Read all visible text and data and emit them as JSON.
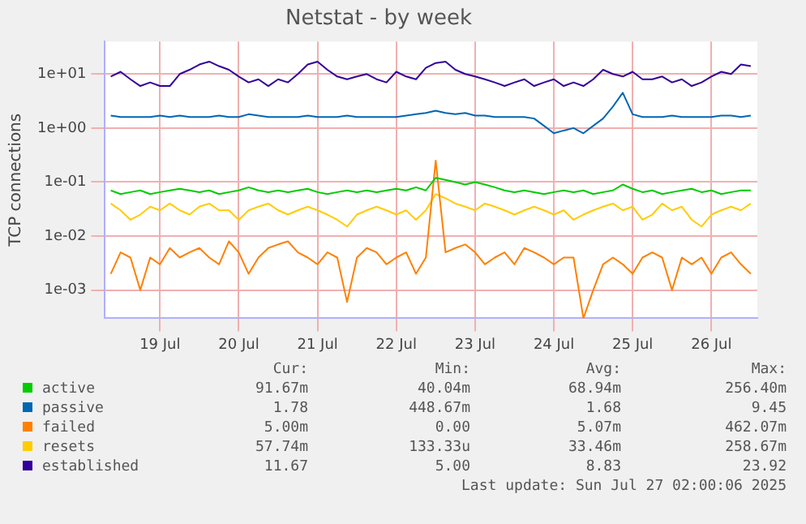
{
  "chart_data": {
    "type": "line",
    "title": "Netstat - by week",
    "ylabel": "TCP connections",
    "x": [
      "2025-07-18T21:00",
      "2025-07-19T00:00",
      "2025-07-19T03:00",
      "2025-07-19T06:00",
      "2025-07-19T09:00",
      "2025-07-19T12:00",
      "2025-07-19T15:00",
      "2025-07-19T18:00",
      "2025-07-19T21:00",
      "2025-07-20T00:00",
      "2025-07-20T03:00",
      "2025-07-20T06:00",
      "2025-07-20T09:00",
      "2025-07-20T12:00",
      "2025-07-20T15:00",
      "2025-07-20T18:00",
      "2025-07-20T21:00",
      "2025-07-21T00:00",
      "2025-07-21T03:00",
      "2025-07-21T06:00",
      "2025-07-21T09:00",
      "2025-07-21T12:00",
      "2025-07-21T15:00",
      "2025-07-21T18:00",
      "2025-07-21T21:00",
      "2025-07-22T00:00",
      "2025-07-22T03:00",
      "2025-07-22T06:00",
      "2025-07-22T09:00",
      "2025-07-22T12:00",
      "2025-07-22T15:00",
      "2025-07-22T18:00",
      "2025-07-22T21:00",
      "2025-07-23T00:00",
      "2025-07-23T03:00",
      "2025-07-23T06:00",
      "2025-07-23T09:00",
      "2025-07-23T12:00",
      "2025-07-23T15:00",
      "2025-07-23T18:00",
      "2025-07-23T21:00",
      "2025-07-24T00:00",
      "2025-07-24T03:00",
      "2025-07-24T06:00",
      "2025-07-24T09:00",
      "2025-07-24T12:00",
      "2025-07-24T15:00",
      "2025-07-24T18:00",
      "2025-07-24T21:00",
      "2025-07-25T00:00",
      "2025-07-25T03:00",
      "2025-07-25T06:00",
      "2025-07-25T09:00",
      "2025-07-25T12:00",
      "2025-07-25T15:00",
      "2025-07-25T18:00",
      "2025-07-25T21:00",
      "2025-07-26T00:00",
      "2025-07-26T03:00",
      "2025-07-26T06:00",
      "2025-07-26T09:00",
      "2025-07-26T12:00",
      "2025-07-26T15:00",
      "2025-07-26T18:00",
      "2025-07-26T21:00",
      "2025-07-27T00:00"
    ],
    "series": [
      {
        "name": "active",
        "color": "#00cc00",
        "values": [
          0.07,
          0.06,
          0.065,
          0.07,
          0.06,
          0.065,
          0.07,
          0.075,
          0.07,
          0.065,
          0.07,
          0.06,
          0.065,
          0.07,
          0.08,
          0.07,
          0.065,
          0.07,
          0.065,
          0.07,
          0.075,
          0.065,
          0.06,
          0.065,
          0.07,
          0.065,
          0.07,
          0.065,
          0.07,
          0.075,
          0.07,
          0.08,
          0.07,
          0.12,
          0.11,
          0.1,
          0.09,
          0.1,
          0.09,
          0.08,
          0.07,
          0.065,
          0.07,
          0.065,
          0.06,
          0.065,
          0.07,
          0.065,
          0.07,
          0.06,
          0.065,
          0.07,
          0.09,
          0.075,
          0.065,
          0.07,
          0.06,
          0.065,
          0.07,
          0.075,
          0.065,
          0.07,
          0.06,
          0.065,
          0.07,
          0.07
        ]
      },
      {
        "name": "passive",
        "color": "#0066b3",
        "values": [
          1.7,
          1.6,
          1.6,
          1.6,
          1.6,
          1.7,
          1.6,
          1.7,
          1.6,
          1.6,
          1.6,
          1.7,
          1.6,
          1.6,
          1.8,
          1.7,
          1.6,
          1.6,
          1.6,
          1.6,
          1.7,
          1.6,
          1.6,
          1.6,
          1.7,
          1.6,
          1.6,
          1.6,
          1.6,
          1.6,
          1.7,
          1.8,
          1.9,
          2.1,
          1.9,
          1.8,
          1.9,
          1.7,
          1.7,
          1.6,
          1.6,
          1.6,
          1.6,
          1.5,
          1.1,
          0.8,
          0.9,
          1.0,
          0.8,
          1.1,
          1.5,
          2.5,
          4.5,
          1.8,
          1.6,
          1.6,
          1.6,
          1.7,
          1.6,
          1.6,
          1.6,
          1.6,
          1.7,
          1.7,
          1.6,
          1.7
        ]
      },
      {
        "name": "failed",
        "color": "#ff8000",
        "values": [
          0.002,
          0.005,
          0.004,
          0.001,
          0.004,
          0.003,
          0.006,
          0.004,
          0.005,
          0.006,
          0.004,
          0.003,
          0.008,
          0.005,
          0.002,
          0.004,
          0.006,
          0.007,
          0.008,
          0.005,
          0.004,
          0.003,
          0.005,
          0.004,
          0.0006,
          0.004,
          0.006,
          0.005,
          0.003,
          0.004,
          0.005,
          0.002,
          0.004,
          0.25,
          0.005,
          0.006,
          0.007,
          0.005,
          0.003,
          0.004,
          0.005,
          0.003,
          0.006,
          0.005,
          0.004,
          0.003,
          0.004,
          0.004,
          0.0003,
          0.001,
          0.003,
          0.004,
          0.003,
          0.002,
          0.004,
          0.005,
          0.004,
          0.001,
          0.004,
          0.003,
          0.004,
          0.002,
          0.004,
          0.005,
          0.003,
          0.002
        ]
      },
      {
        "name": "resets",
        "color": "#ffcc00",
        "values": [
          0.04,
          0.03,
          0.02,
          0.025,
          0.035,
          0.03,
          0.04,
          0.03,
          0.025,
          0.035,
          0.04,
          0.03,
          0.03,
          0.02,
          0.03,
          0.035,
          0.04,
          0.03,
          0.025,
          0.03,
          0.035,
          0.03,
          0.025,
          0.02,
          0.015,
          0.025,
          0.03,
          0.035,
          0.03,
          0.025,
          0.03,
          0.02,
          0.03,
          0.06,
          0.05,
          0.04,
          0.035,
          0.03,
          0.04,
          0.035,
          0.03,
          0.025,
          0.03,
          0.035,
          0.03,
          0.025,
          0.03,
          0.02,
          0.025,
          0.03,
          0.035,
          0.04,
          0.03,
          0.035,
          0.02,
          0.025,
          0.04,
          0.03,
          0.035,
          0.02,
          0.015,
          0.025,
          0.03,
          0.035,
          0.03,
          0.04
        ]
      },
      {
        "name": "established",
        "color": "#330099",
        "values": [
          9,
          11,
          8,
          6,
          7,
          6,
          6,
          10,
          12,
          15,
          17,
          14,
          12,
          9,
          7,
          8,
          6,
          8,
          7,
          10,
          15,
          17,
          12,
          9,
          8,
          9,
          10,
          8,
          7,
          11,
          9,
          8,
          13,
          16,
          17,
          12,
          10,
          9,
          8,
          7,
          6,
          7,
          8,
          6,
          7,
          8,
          6,
          7,
          6,
          8,
          12,
          10,
          9,
          11,
          8,
          8,
          9,
          7,
          8,
          6,
          7,
          9,
          11,
          10,
          15,
          14
        ]
      }
    ],
    "log": true,
    "ylim": [
      0.0003,
      40
    ],
    "yticks": [
      {
        "value": 0.001,
        "label": "1e-03"
      },
      {
        "value": 0.01,
        "label": "1e-02"
      },
      {
        "value": 0.1,
        "label": "1e-01"
      },
      {
        "value": 1,
        "label": "1e+00"
      },
      {
        "value": 10,
        "label": "1e+01"
      }
    ],
    "xlim": [
      "2025-07-18T19:00",
      "2025-07-27T02:00"
    ],
    "xticks": [
      {
        "value": "2025-07-19T12:00",
        "label": "19 Jul"
      },
      {
        "value": "2025-07-20T12:00",
        "label": "20 Jul"
      },
      {
        "value": "2025-07-21T12:00",
        "label": "21 Jul"
      },
      {
        "value": "2025-07-22T12:00",
        "label": "22 Jul"
      },
      {
        "value": "2025-07-23T12:00",
        "label": "23 Jul"
      },
      {
        "value": "2025-07-24T12:00",
        "label": "24 Jul"
      },
      {
        "value": "2025-07-25T12:00",
        "label": "25 Jul"
      },
      {
        "value": "2025-07-26T12:00",
        "label": "26 Jul"
      }
    ],
    "grid": true,
    "legend": "bottom",
    "marker": "none",
    "line_style": "solid",
    "annotations": [
      "Cur:",
      "Min:",
      "Avg:",
      "Max:",
      "91.67m",
      "40.04m",
      "68.94m",
      "256.40m",
      "1.78",
      "448.67m",
      "1.68",
      "9.45",
      "5.00m",
      "0.00",
      "5.07m",
      "462.07m",
      "57.74m",
      "133.33u",
      "33.46m",
      "258.67m",
      "11.67",
      "5.00",
      "8.83",
      "23.92",
      "Last update: Sun Jul 27 02:00:06 2025"
    ]
  }
}
